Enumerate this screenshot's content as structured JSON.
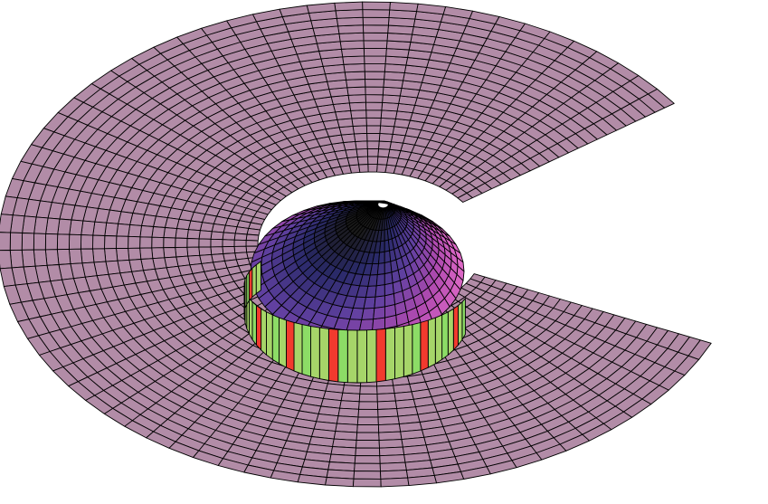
{
  "scene": {
    "type": "3d-surface-render",
    "annular_surface": {
      "color": "#b28ca7",
      "rings": 22,
      "segments": 70,
      "missing_wedge": true
    },
    "cylinder_band": {
      "colors": [
        "#a6d569",
        "#8cdc66",
        "#f23a2e",
        "#f27a3a",
        "#d9a060"
      ],
      "segments": 40
    },
    "inner_bowl": {
      "colors": [
        "#e06ac8",
        "#b04ab0",
        "#6040a0",
        "#2a2a6a",
        "#1a1a1a"
      ],
      "rings": 12,
      "segments": 48
    },
    "edge_color": "#000000"
  }
}
